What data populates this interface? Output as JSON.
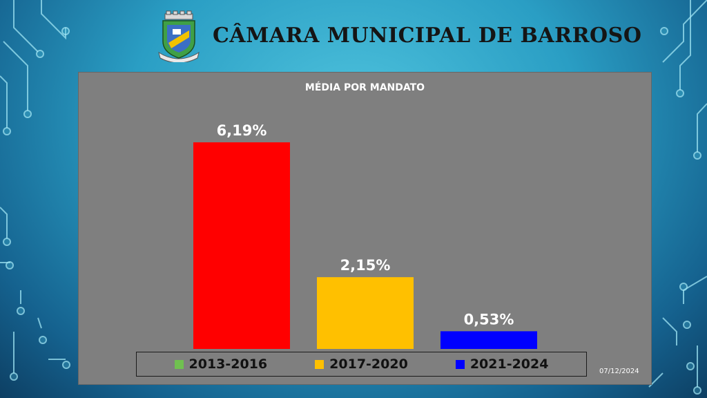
{
  "header": {
    "title": "CÂMARA MUNICIPAL DE BARROSO"
  },
  "footer": {
    "date": "07/12/2024"
  },
  "chart_data": {
    "type": "bar",
    "title": "MÉDIA POR MANDATO",
    "categories": [
      "2013-2016",
      "2017-2020",
      "2021-2024"
    ],
    "values": [
      6.19,
      2.15,
      0.53
    ],
    "value_labels": [
      "6,19%",
      "2,15%",
      "0,53%"
    ],
    "bar_colors": [
      "#ff0000",
      "#ffc000",
      "#0000ff"
    ],
    "ylim": [
      0,
      6.5
    ],
    "grid": false,
    "legend": {
      "placement": "bottom",
      "entries": [
        {
          "label": "2013-2016",
          "color": "#70c050"
        },
        {
          "label": "2017-2020",
          "color": "#ffc000"
        },
        {
          "label": "2021-2024",
          "color": "#0000ff"
        }
      ]
    }
  }
}
